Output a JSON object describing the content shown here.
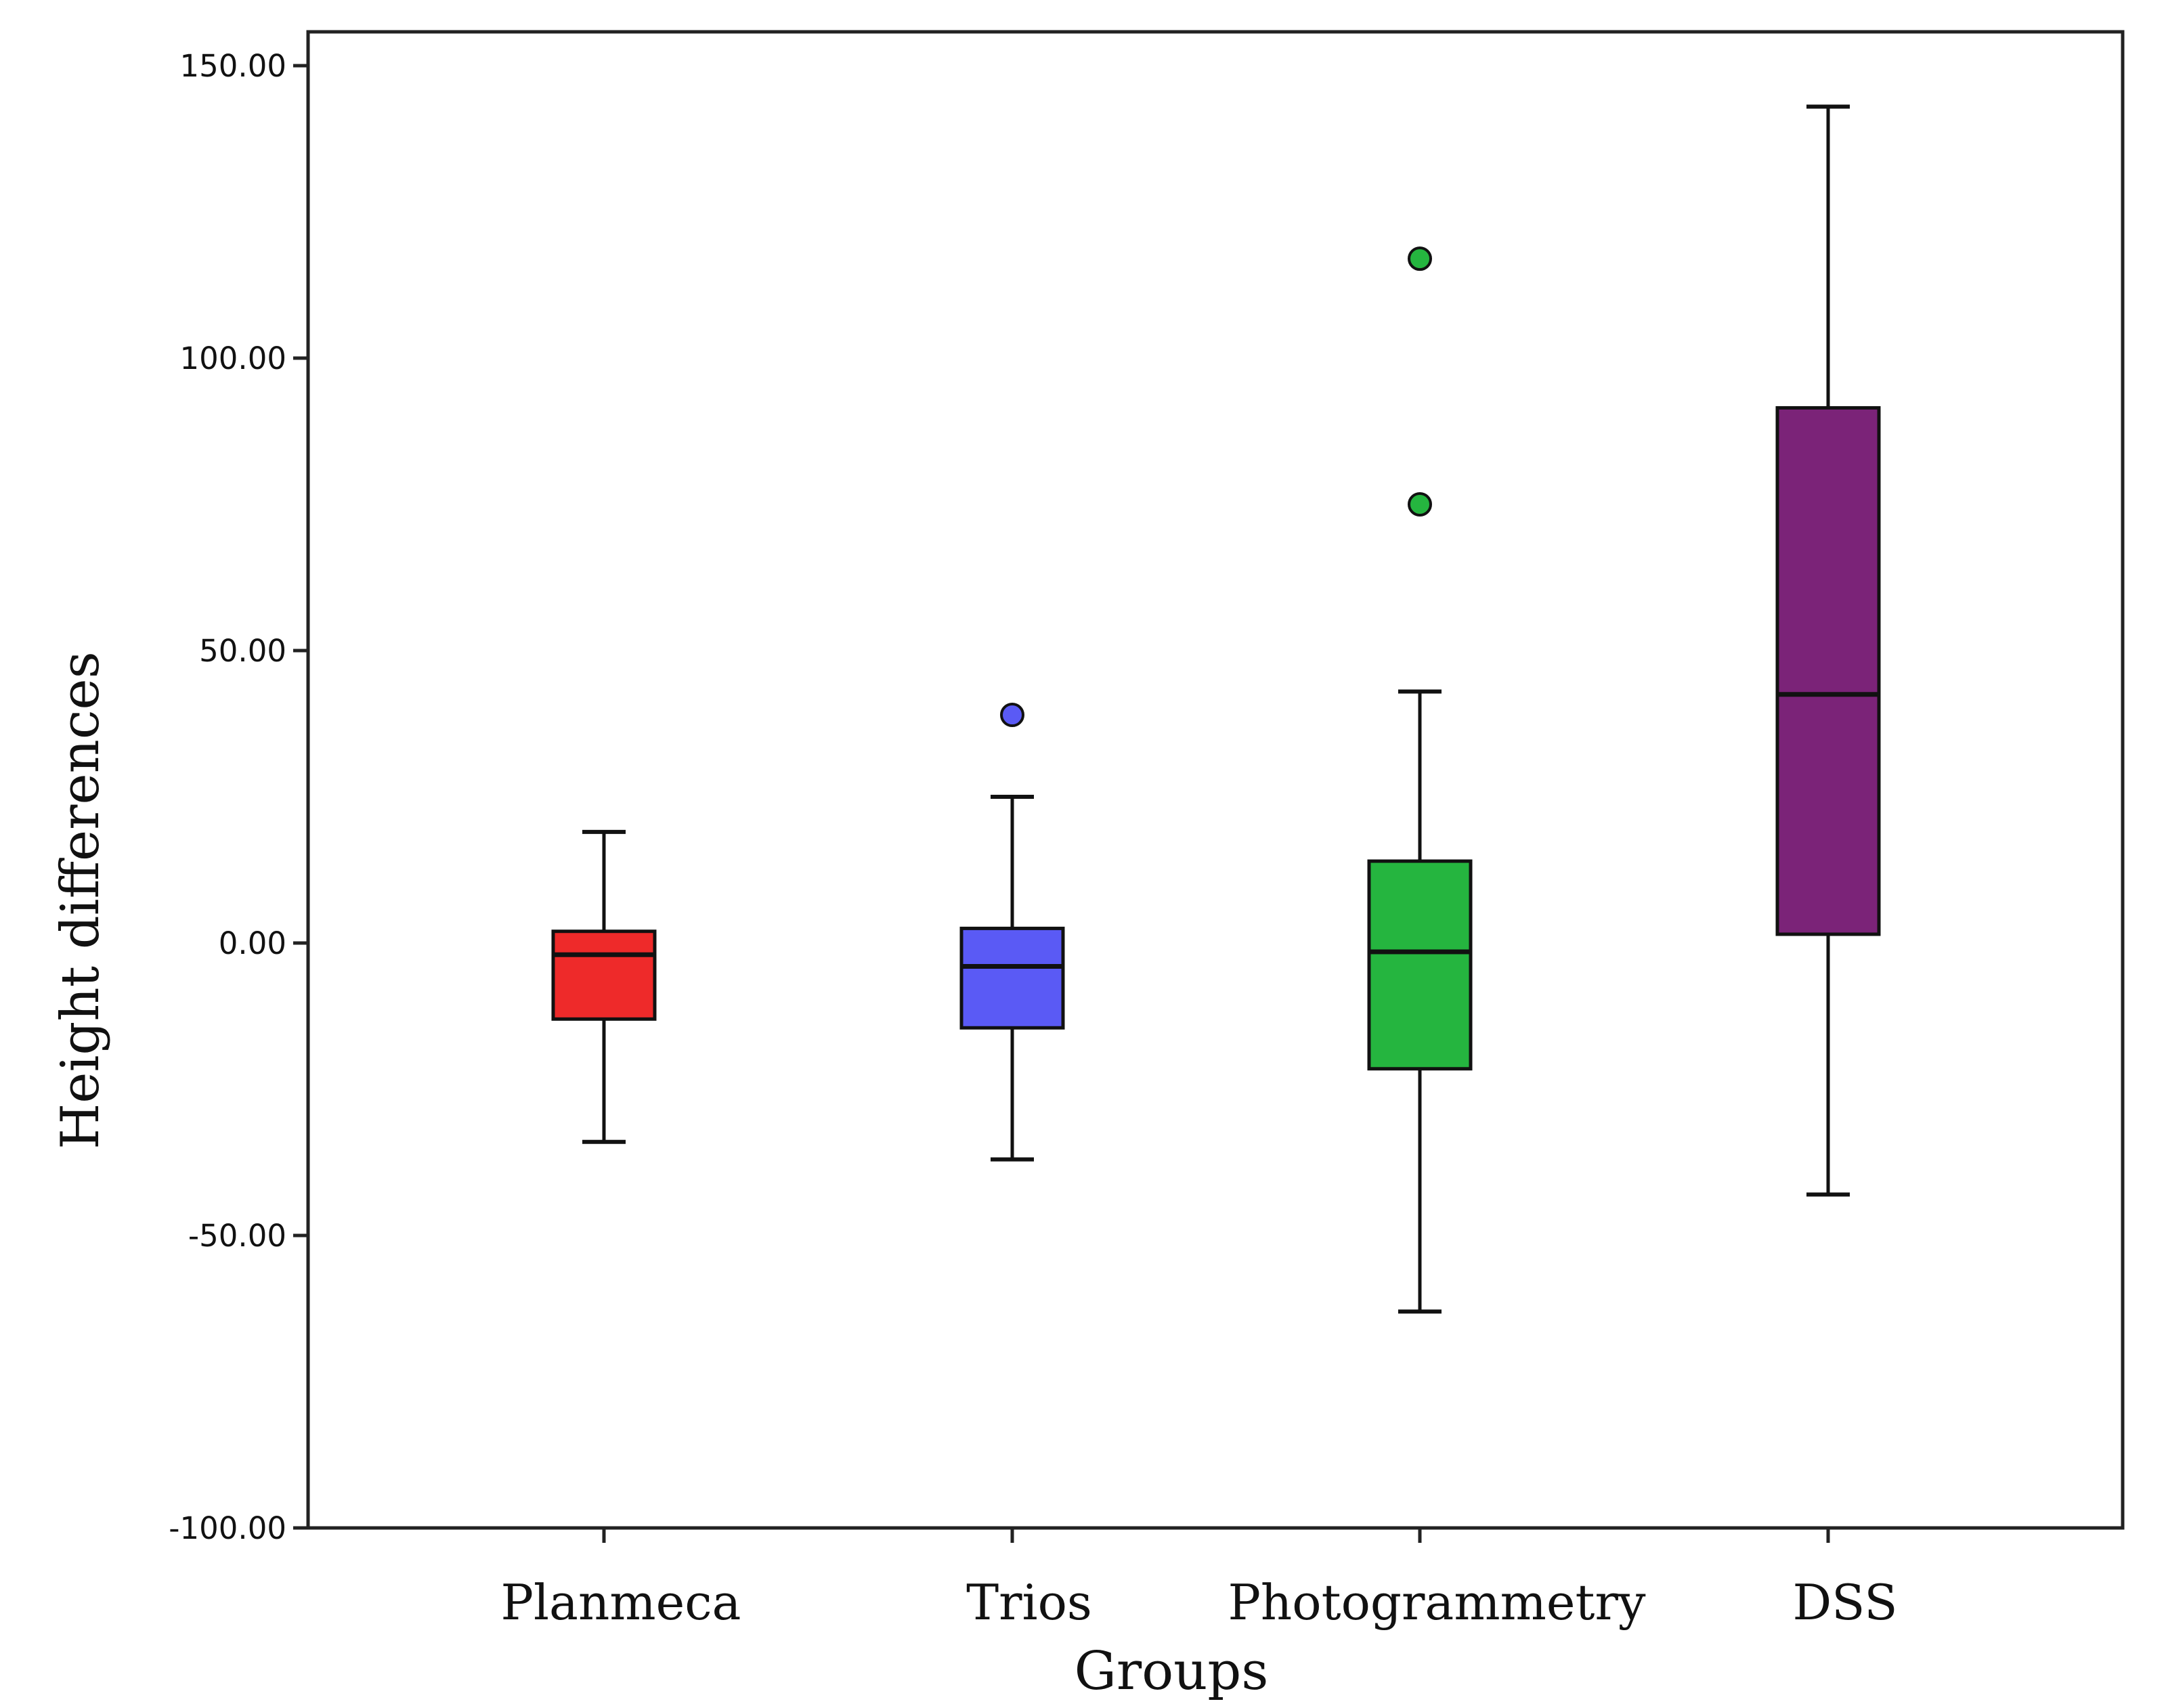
{
  "chart_data": {
    "type": "box",
    "title": "",
    "xlabel": "Groups",
    "ylabel": "Height differences",
    "ylim": [
      -100,
      150
    ],
    "yticks": [
      {
        "value": 150,
        "label": "150.00"
      },
      {
        "value": 100,
        "label": "100.00"
      },
      {
        "value": 50,
        "label": "50.00"
      },
      {
        "value": 0,
        "label": "0.00"
      },
      {
        "value": -50,
        "label": "-50.00"
      },
      {
        "value": -100,
        "label": "-100.00"
      }
    ],
    "grid": false,
    "categories": [
      "Planmeca",
      "Trios",
      "Photogrammetry",
      "DSS"
    ],
    "series": [
      {
        "name": "Planmeca",
        "color": "#ee2a2a",
        "whisker_low": -34,
        "q1": -13,
        "median": -2,
        "q3": 2,
        "whisker_high": 19,
        "outliers": []
      },
      {
        "name": "Trios",
        "color": "#5a5af5",
        "whisker_low": -37,
        "q1": -14.5,
        "median": -4,
        "q3": 2.5,
        "whisker_high": 25,
        "outliers": [
          39
        ]
      },
      {
        "name": "Photogrammetry",
        "color": "#25b53f",
        "whisker_low": -63,
        "q1": -21.5,
        "median": -1.5,
        "q3": 14,
        "whisker_high": 43,
        "outliers": [
          75,
          117
        ]
      },
      {
        "name": "DSS",
        "color": "#7b2378",
        "whisker_low": -43,
        "q1": 1.5,
        "median": 42.5,
        "q3": 91.5,
        "whisker_high": 143,
        "outliers": []
      }
    ]
  }
}
